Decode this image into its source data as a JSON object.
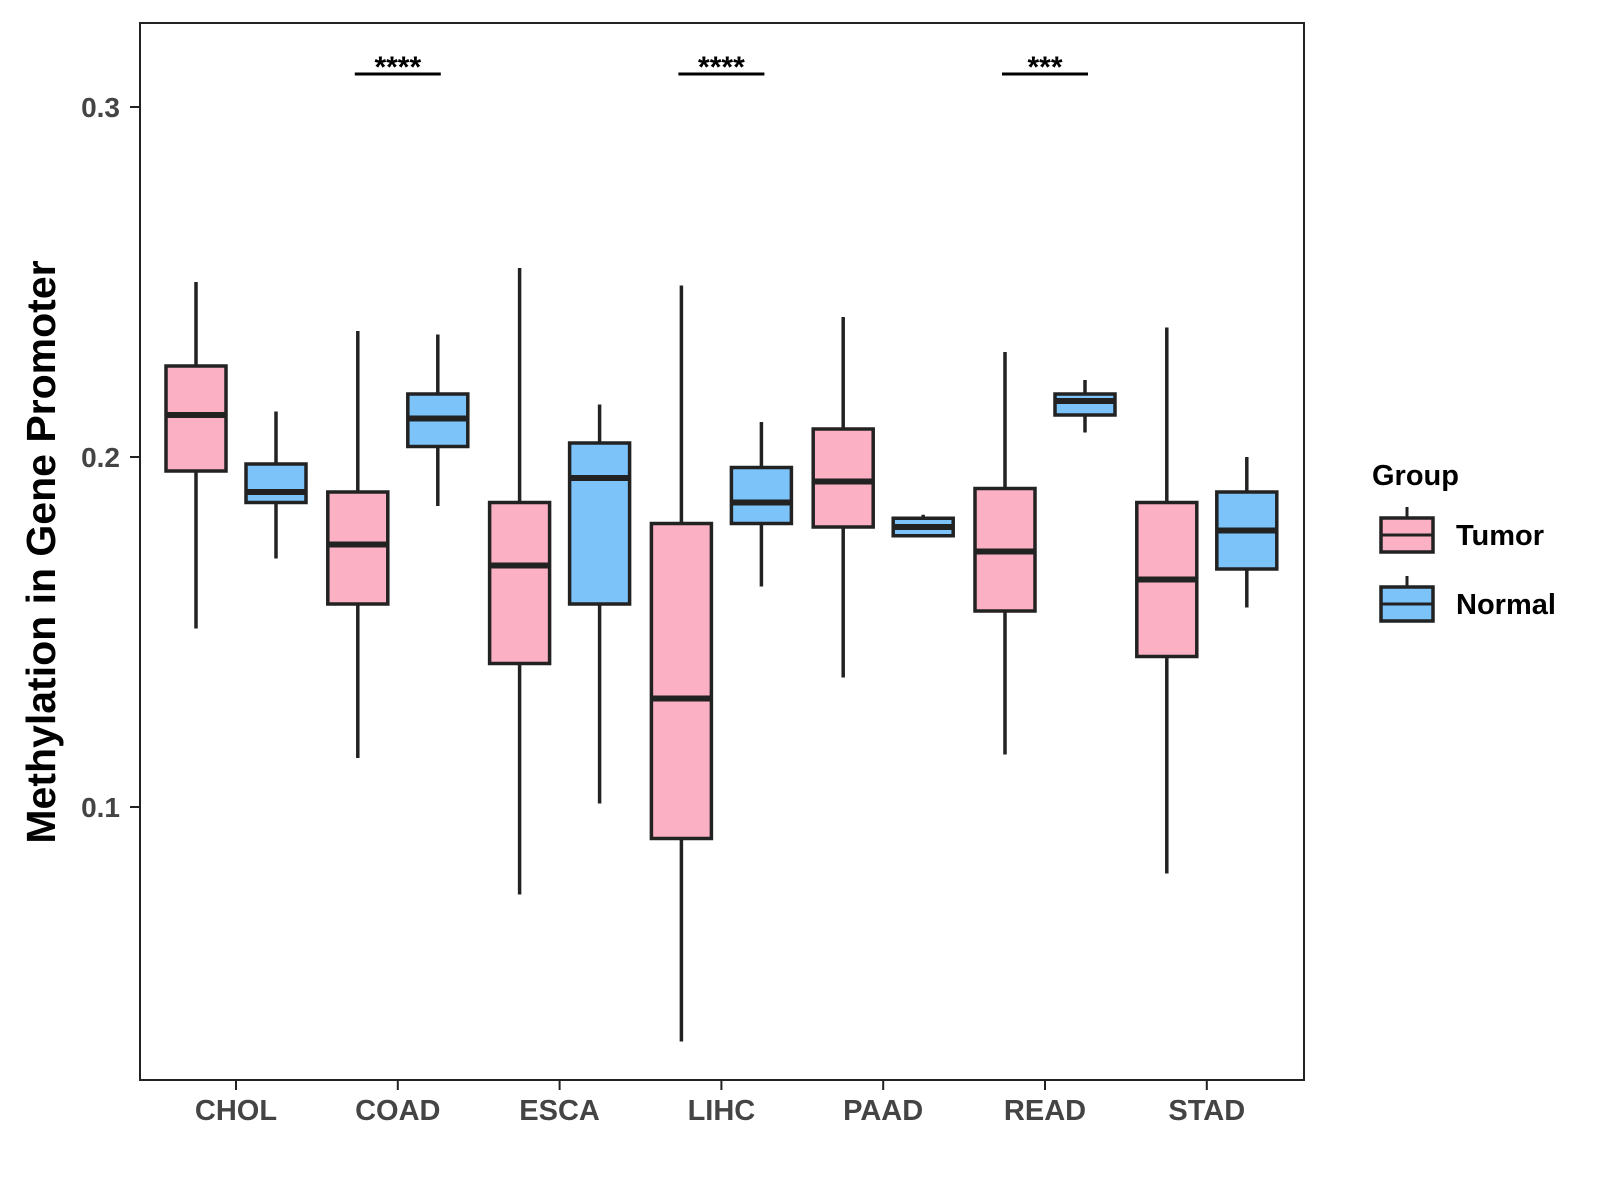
{
  "chart_data": {
    "type": "boxplot",
    "title": "",
    "xlabel": "",
    "ylabel": "Methylation in Gene Promoter",
    "ylim": [
      0.022,
      0.324
    ],
    "yticks": [
      0.1,
      0.2,
      0.3
    ],
    "ytick_labels": [
      "0.1",
      "0.2",
      "0.3"
    ],
    "grid": false,
    "legend": {
      "title": "Group",
      "position": "right",
      "entries": [
        "Tumor",
        "Normal"
      ]
    },
    "colors": {
      "Tumor": "#fbb0c3",
      "Normal": "#7cc3f9",
      "stroke": "#222222"
    },
    "categories": [
      "CHOL",
      "COAD",
      "ESCA",
      "LIHC",
      "PAAD",
      "READ",
      "STAD"
    ],
    "series": [
      {
        "name": "Tumor",
        "boxes": [
          {
            "whisker_low": 0.151,
            "q1": 0.196,
            "median": 0.212,
            "q3": 0.226,
            "whisker_high": 0.25
          },
          {
            "whisker_low": 0.114,
            "q1": 0.158,
            "median": 0.175,
            "q3": 0.19,
            "whisker_high": 0.236
          },
          {
            "whisker_low": 0.075,
            "q1": 0.141,
            "median": 0.169,
            "q3": 0.187,
            "whisker_high": 0.254
          },
          {
            "whisker_low": 0.033,
            "q1": 0.091,
            "median": 0.131,
            "q3": 0.181,
            "whisker_high": 0.249
          },
          {
            "whisker_low": 0.137,
            "q1": 0.18,
            "median": 0.193,
            "q3": 0.208,
            "whisker_high": 0.24
          },
          {
            "whisker_low": 0.115,
            "q1": 0.156,
            "median": 0.173,
            "q3": 0.191,
            "whisker_high": 0.23
          },
          {
            "whisker_low": 0.081,
            "q1": 0.143,
            "median": 0.165,
            "q3": 0.187,
            "whisker_high": 0.237
          }
        ]
      },
      {
        "name": "Normal",
        "boxes": [
          {
            "whisker_low": 0.171,
            "q1": 0.187,
            "median": 0.19,
            "q3": 0.198,
            "whisker_high": 0.213
          },
          {
            "whisker_low": 0.186,
            "q1": 0.203,
            "median": 0.211,
            "q3": 0.218,
            "whisker_high": 0.235
          },
          {
            "whisker_low": 0.101,
            "q1": 0.158,
            "median": 0.194,
            "q3": 0.204,
            "whisker_high": 0.215
          },
          {
            "whisker_low": 0.163,
            "q1": 0.181,
            "median": 0.187,
            "q3": 0.197,
            "whisker_high": 0.21
          },
          {
            "whisker_low": 0.177,
            "q1": 0.1775,
            "median": 0.18,
            "q3": 0.1825,
            "whisker_high": 0.1835
          },
          {
            "whisker_low": 0.207,
            "q1": 0.212,
            "median": 0.216,
            "q3": 0.218,
            "whisker_high": 0.222
          },
          {
            "whisker_low": 0.157,
            "q1": 0.168,
            "median": 0.179,
            "q3": 0.19,
            "whisker_high": 0.2
          }
        ]
      }
    ],
    "annotations": [
      {
        "category": "COAD",
        "text": "****"
      },
      {
        "category": "LIHC",
        "text": "****"
      },
      {
        "category": "READ",
        "text": "***"
      }
    ]
  }
}
